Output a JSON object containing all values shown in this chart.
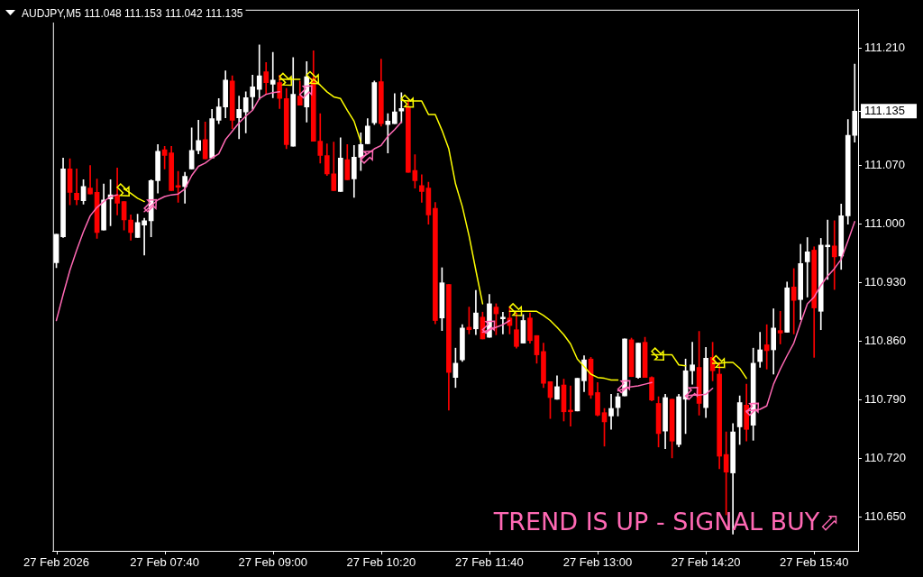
{
  "chart_data": {
    "type": "candlestick",
    "title": "AUDJPY,M5 111.048 111.153 111.042 111.135",
    "categories": [
      "27 Feb 2026",
      null,
      null,
      null,
      null,
      null,
      null,
      null,
      null,
      null,
      null,
      null,
      null,
      null,
      null,
      null,
      "27 Feb 07:40",
      null,
      null,
      null,
      null,
      null,
      null,
      null,
      null,
      null,
      null,
      null,
      null,
      null,
      null,
      null,
      "27 Feb 09:00",
      null,
      null,
      null,
      null,
      null,
      null,
      null,
      null,
      null,
      null,
      null,
      null,
      null,
      null,
      null,
      "27 Feb 10:20",
      null,
      null,
      null,
      null,
      null,
      null,
      null,
      null,
      null,
      null,
      null,
      null,
      null,
      null,
      null,
      "27 Feb 11:40",
      null,
      null,
      null,
      null,
      null,
      null,
      null,
      null,
      null,
      null,
      null,
      null,
      null,
      null,
      null,
      "27 Feb 13:00",
      null,
      null,
      null,
      null,
      null,
      null,
      null,
      null,
      null,
      null,
      null,
      null,
      null,
      null,
      null,
      "27 Feb 14:20",
      null,
      null,
      null,
      null,
      null,
      null,
      null,
      null,
      null,
      null,
      null,
      null,
      null,
      null,
      null,
      "27 Feb 15:40",
      null,
      null,
      null,
      null,
      null,
      null
    ],
    "ohlc": [
      [
        110.954,
        110.988,
        110.948,
        110.988
      ],
      [
        110.985,
        111.079,
        110.984,
        111.066
      ],
      [
        111.066,
        111.078,
        111.023,
        111.038
      ],
      [
        111.037,
        111.066,
        111.023,
        111.029
      ],
      [
        111.028,
        111.053,
        111.024,
        111.045
      ],
      [
        111.043,
        111.07,
        111.036,
        111.036
      ],
      [
        111.038,
        111.054,
        110.983,
        110.99
      ],
      [
        110.993,
        111.048,
        110.993,
        111.029
      ],
      [
        111.03,
        111.053,
        110.998,
        111.035
      ],
      [
        111.035,
        111.067,
        111.011,
        111.025
      ],
      [
        111.027,
        111.027,
        110.993,
        111.005
      ],
      [
        111.005,
        111.011,
        110.981,
        110.99
      ],
      [
        110.984,
        111.012,
        110.984,
        111.002
      ],
      [
        110.999,
        111.007,
        110.963,
        111.004
      ],
      [
        111.004,
        111.053,
        110.985,
        111.052
      ],
      [
        111.052,
        111.095,
        111.037,
        111.087
      ],
      [
        111.089,
        111.093,
        111.066,
        111.082
      ],
      [
        111.085,
        111.093,
        111.04,
        111.04
      ],
      [
        111.046,
        111.063,
        111.026,
        111.044
      ],
      [
        111.045,
        111.062,
        111.025,
        111.057
      ],
      [
        111.066,
        111.115,
        111.066,
        111.088
      ],
      [
        111.088,
        111.124,
        111.084,
        111.1
      ],
      [
        111.101,
        111.122,
        111.078,
        111.078
      ],
      [
        111.079,
        111.137,
        111.079,
        111.126
      ],
      [
        111.124,
        111.15,
        111.12,
        111.14
      ],
      [
        111.14,
        111.183,
        111.127,
        111.172
      ],
      [
        111.171,
        111.177,
        111.114,
        111.124
      ],
      [
        111.127,
        111.153,
        111.102,
        111.137
      ],
      [
        111.134,
        111.158,
        111.109,
        111.151
      ],
      [
        111.152,
        111.178,
        111.137,
        111.164
      ],
      [
        111.161,
        111.214,
        111.149,
        111.177
      ],
      [
        111.182,
        111.193,
        111.155,
        111.169
      ],
      [
        111.167,
        111.205,
        111.151,
        111.172
      ],
      [
        111.169,
        111.178,
        111.138,
        111.15
      ],
      [
        111.15,
        111.162,
        111.09,
        111.095
      ],
      [
        111.093,
        111.199,
        111.093,
        111.155
      ],
      [
        111.153,
        111.171,
        111.142,
        111.142
      ],
      [
        111.14,
        111.194,
        111.122,
        111.176
      ],
      [
        111.174,
        111.207,
        111.099,
        111.099
      ],
      [
        111.099,
        111.132,
        111.073,
        111.082
      ],
      [
        111.082,
        111.096,
        111.058,
        111.06
      ],
      [
        111.06,
        111.098,
        111.04,
        111.04
      ],
      [
        111.039,
        111.103,
        111.039,
        111.079
      ],
      [
        111.077,
        111.095,
        111.053,
        111.053
      ],
      [
        111.054,
        111.094,
        111.032,
        111.08
      ],
      [
        111.08,
        111.109,
        111.064,
        111.095
      ],
      [
        111.096,
        111.126,
        111.096,
        111.117
      ],
      [
        111.121,
        111.171,
        111.119,
        111.169
      ],
      [
        111.17,
        111.197,
        111.117,
        111.12
      ],
      [
        111.119,
        111.132,
        111.085,
        111.123
      ],
      [
        111.12,
        111.156,
        111.12,
        111.134
      ],
      [
        111.135,
        111.157,
        111.121,
        111.138
      ],
      [
        111.14,
        111.148,
        111.062,
        111.062
      ],
      [
        111.064,
        111.083,
        111.043,
        111.052
      ],
      [
        111.046,
        111.059,
        111.026,
        111.039
      ],
      [
        111.043,
        111.05,
        111.0,
        111.011
      ],
      [
        111.019,
        111.026,
        110.881,
        110.885
      ],
      [
        110.888,
        110.948,
        110.873,
        110.93
      ],
      [
        110.928,
        110.928,
        110.778,
        110.823
      ],
      [
        110.817,
        110.852,
        110.805,
        110.834
      ],
      [
        110.838,
        110.88,
        110.836,
        110.876
      ],
      [
        110.877,
        110.901,
        110.869,
        110.874
      ],
      [
        110.875,
        110.921,
        110.868,
        110.894
      ],
      [
        110.889,
        110.895,
        110.863,
        110.863
      ],
      [
        110.865,
        110.916,
        110.865,
        110.905
      ],
      [
        110.901,
        110.905,
        110.868,
        110.893
      ],
      [
        110.887,
        110.895,
        110.869,
        110.889
      ],
      [
        110.888,
        110.901,
        110.869,
        110.879
      ],
      [
        110.874,
        110.894,
        110.852,
        110.854
      ],
      [
        110.858,
        110.892,
        110.858,
        110.885
      ],
      [
        110.888,
        110.894,
        110.858,
        110.861
      ],
      [
        110.867,
        110.867,
        110.834,
        110.844
      ],
      [
        110.848,
        110.858,
        110.805,
        110.81
      ],
      [
        110.812,
        110.812,
        110.768,
        110.793
      ],
      [
        110.791,
        110.819,
        110.791,
        110.806
      ],
      [
        110.808,
        110.815,
        110.765,
        110.776
      ],
      [
        110.778,
        110.807,
        110.759,
        110.776
      ],
      [
        110.777,
        110.816,
        110.777,
        110.816
      ],
      [
        110.813,
        110.843,
        110.8,
        110.838
      ],
      [
        110.839,
        110.841,
        110.792,
        110.796
      ],
      [
        110.799,
        110.811,
        110.771,
        110.772
      ],
      [
        110.775,
        110.78,
        110.735,
        110.764
      ],
      [
        110.771,
        110.797,
        110.755,
        110.78
      ],
      [
        110.781,
        110.798,
        110.771,
        110.794
      ],
      [
        110.795,
        110.863,
        110.795,
        110.863
      ],
      [
        110.862,
        110.864,
        110.818,
        110.818
      ],
      [
        110.817,
        110.858,
        110.816,
        110.858
      ],
      [
        110.859,
        110.865,
        110.817,
        110.817
      ],
      [
        110.817,
        110.818,
        110.789,
        110.79
      ],
      [
        110.786,
        110.794,
        110.734,
        110.75
      ],
      [
        110.753,
        110.797,
        110.732,
        110.793
      ],
      [
        110.791,
        110.791,
        110.721,
        110.741
      ],
      [
        110.737,
        110.797,
        110.734,
        110.794
      ],
      [
        110.791,
        110.839,
        110.75,
        110.825
      ],
      [
        110.825,
        110.859,
        110.809,
        110.832
      ],
      [
        110.829,
        110.872,
        110.772,
        110.786
      ],
      [
        110.781,
        110.853,
        110.769,
        110.84
      ],
      [
        110.841,
        110.859,
        110.813,
        110.825
      ],
      [
        110.821,
        110.835,
        110.708,
        110.723
      ],
      [
        110.725,
        110.752,
        110.653,
        110.704
      ],
      [
        110.703,
        110.762,
        110.63,
        110.752
      ],
      [
        110.758,
        110.795,
        110.737,
        110.787
      ],
      [
        110.784,
        110.809,
        110.741,
        110.755
      ],
      [
        110.76,
        110.852,
        110.742,
        110.834
      ],
      [
        110.836,
        110.871,
        110.829,
        110.85
      ],
      [
        110.856,
        110.88,
        110.827,
        110.849
      ],
      [
        110.85,
        110.899,
        110.821,
        110.876
      ],
      [
        110.873,
        110.896,
        110.857,
        110.87
      ],
      [
        110.871,
        110.931,
        110.871,
        110.924
      ],
      [
        110.925,
        110.947,
        110.869,
        110.909
      ],
      [
        110.91,
        110.976,
        110.886,
        110.953
      ],
      [
        110.955,
        110.984,
        110.913,
        110.967
      ],
      [
        110.969,
        110.973,
        110.841,
        110.9
      ],
      [
        110.896,
        110.983,
        110.874,
        110.975
      ],
      [
        110.973,
        111.005,
        110.934,
        110.975
      ],
      [
        110.974,
        111.004,
        110.922,
        110.961
      ],
      [
        110.962,
        111.024,
        110.946,
        111.01
      ],
      [
        111.01,
        111.125,
        111.0,
        111.106
      ],
      [
        111.106,
        111.191,
        111.098,
        111.135
      ]
    ],
    "colors": [
      "#ffffff",
      "#ffffff",
      "#ff0000",
      "#ff0000",
      "#ffffff",
      "#ff0000",
      "#ff0000",
      "#ffffff",
      "#ffffff",
      "#ff0000",
      "#ff0000",
      "#ff0000",
      "#ffffff",
      "#ffffff",
      "#ffffff",
      "#ffffff",
      "#ff0000",
      "#ff0000",
      "#ff0000",
      "#ffffff",
      "#ffffff",
      "#ffffff",
      "#ff0000",
      "#ffffff",
      "#ffffff",
      "#ffffff",
      "#ff0000",
      "#ffffff",
      "#ffffff",
      "#ffffff",
      "#ffffff",
      "#ff0000",
      "#ffffff",
      "#ff0000",
      "#ff0000",
      "#ffffff",
      "#ff0000",
      "#ffffff",
      "#ff0000",
      "#ff0000",
      "#ff0000",
      "#ff0000",
      "#ffffff",
      "#ff0000",
      "#ffffff",
      "#ffffff",
      "#ffffff",
      "#ffffff",
      "#ff0000",
      "#ffffff",
      "#ffffff",
      "#ffffff",
      "#ff0000",
      "#ff0000",
      "#ff0000",
      "#ff0000",
      "#ff0000",
      "#ffffff",
      "#ff0000",
      "#ffffff",
      "#ffffff",
      "#ff0000",
      "#ffffff",
      "#ff0000",
      "#ffffff",
      "#ff0000",
      "#ffffff",
      "#ff0000",
      "#ff0000",
      "#ffffff",
      "#ff0000",
      "#ff0000",
      "#ff0000",
      "#ff0000",
      "#ffffff",
      "#ff0000",
      "#ff0000",
      "#ffffff",
      "#ffffff",
      "#ff0000",
      "#ff0000",
      "#ff0000",
      "#ffffff",
      "#ffffff",
      "#ffffff",
      "#ff0000",
      "#ffffff",
      "#ff0000",
      "#ff0000",
      "#ff0000",
      "#ffffff",
      "#ff0000",
      "#ffffff",
      "#ffffff",
      "#ffffff",
      "#ff0000",
      "#ffffff",
      "#ff0000",
      "#ff0000",
      "#ff0000",
      "#ffffff",
      "#ffffff",
      "#ff0000",
      "#ffffff",
      "#ffffff",
      "#ff0000",
      "#ffffff",
      "#ff0000",
      "#ffffff",
      "#ff0000",
      "#ffffff",
      "#ffffff",
      "#ff0000",
      "#ffffff",
      "#ffffff",
      "#ff0000",
      "#ffffff",
      "#ffffff",
      "#ffffff"
    ],
    "series": [
      {
        "type": "line",
        "color": "#ffff00",
        "values": [
          null,
          null,
          null,
          null,
          null,
          null,
          null,
          null,
          null,
          null,
          111.042,
          111.037,
          111.031,
          111.027,
          null,
          null,
          null,
          null,
          null,
          null,
          null,
          null,
          null,
          null,
          null,
          null,
          null,
          null,
          null,
          null,
          null,
          null,
          null,
          111.173,
          111.173,
          111.173,
          111.173,
          null,
          111.173,
          111.166,
          111.158,
          111.152,
          111.15,
          111.136,
          111.123,
          111.098,
          null,
          null,
          null,
          null,
          null,
          111.148,
          111.147,
          111.147,
          111.147,
          111.131,
          111.131,
          111.112,
          111.09,
          111.048,
          111.021,
          110.986,
          110.945,
          110.905,
          null,
          null,
          null,
          110.896,
          110.896,
          110.896,
          110.896,
          110.896,
          110.891,
          110.885,
          110.877,
          110.868,
          110.857,
          110.839,
          110.83,
          110.821,
          110.817,
          110.816,
          110.814,
          110.814,
          null,
          null,
          null,
          null,
          110.844,
          110.844,
          110.844,
          110.844,
          110.832,
          110.831,
          null,
          null,
          null,
          110.834,
          110.834,
          110.835,
          110.835,
          110.828,
          110.816,
          null,
          null,
          null,
          null,
          null,
          null,
          null,
          null,
          null,
          null,
          null,
          null,
          null,
          null,
          null,
          null
        ]
      },
      {
        "type": "line",
        "color": "#ff69b4",
        "values": [
          110.885,
          110.916,
          110.945,
          110.969,
          110.991,
          111.01,
          111.02,
          111.027,
          111.033,
          111.035,
          null,
          null,
          null,
          111.015,
          111.022,
          111.029,
          111.033,
          111.035,
          111.036,
          111.042,
          111.058,
          111.069,
          111.073,
          111.079,
          111.084,
          111.101,
          111.111,
          111.121,
          111.129,
          111.136,
          111.15,
          111.155,
          111.157,
          111.158,
          null,
          null,
          null,
          null,
          null,
          null,
          null,
          null,
          null,
          null,
          null,
          111.079,
          111.084,
          111.09,
          111.094,
          111.105,
          111.113,
          111.122,
          null,
          null,
          null,
          null,
          null,
          null,
          null,
          null,
          null,
          null,
          null,
          110.871,
          110.874,
          110.877,
          110.88,
          110.885,
          null,
          null,
          null,
          null,
          null,
          null,
          null,
          null,
          null,
          null,
          null,
          null,
          null,
          null,
          null,
          110.801,
          110.804,
          110.806,
          110.807,
          110.809,
          110.811,
          null,
          null,
          null,
          null,
          110.795,
          110.796,
          110.796,
          110.797,
          110.804,
          null,
          null,
          null,
          null,
          110.777,
          110.778,
          110.779,
          110.783,
          110.809,
          110.827,
          110.843,
          110.858,
          110.882,
          110.905,
          110.913,
          110.927,
          110.938,
          110.947,
          110.958,
          110.98,
          111.003
        ]
      },
      {
        "type": "scatter",
        "color": "#ffff00",
        "values": [
          null,
          null,
          null,
          null,
          null,
          null,
          null,
          null,
          null,
          null,
          111.04,
          null,
          null,
          null,
          null,
          null,
          null,
          null,
          null,
          null,
          null,
          null,
          null,
          null,
          null,
          null,
          null,
          null,
          null,
          null,
          null,
          null,
          null,
          null,
          111.172,
          null,
          null,
          null,
          111.174,
          null,
          null,
          null,
          null,
          null,
          null,
          null,
          null,
          null,
          null,
          null,
          null,
          null,
          111.146,
          null,
          null,
          null,
          null,
          null,
          null,
          null,
          null,
          null,
          null,
          null,
          null,
          null,
          null,
          null,
          110.897,
          null,
          null,
          null,
          null,
          null,
          null,
          null,
          null,
          null,
          null,
          null,
          null,
          null,
          null,
          null,
          null,
          null,
          null,
          null,
          null,
          110.844,
          null,
          null,
          null,
          null,
          null,
          null,
          null,
          null,
          110.835,
          null,
          null,
          null,
          null,
          null,
          null,
          null,
          null,
          null,
          null,
          null,
          null,
          null,
          null,
          null,
          null,
          null,
          null,
          null,
          null
        ]
      },
      {
        "type": "scatter",
        "color": "#ff69b4",
        "values": [
          null,
          null,
          null,
          null,
          null,
          null,
          null,
          null,
          null,
          null,
          null,
          null,
          null,
          null,
          111.023,
          null,
          null,
          null,
          null,
          null,
          null,
          null,
          null,
          null,
          null,
          null,
          null,
          null,
          null,
          null,
          null,
          null,
          null,
          null,
          null,
          null,
          null,
          111.159,
          null,
          null,
          null,
          null,
          null,
          null,
          null,
          null,
          111.081,
          null,
          null,
          null,
          null,
          null,
          null,
          null,
          null,
          null,
          null,
          null,
          null,
          null,
          null,
          null,
          null,
          null,
          110.878,
          null,
          null,
          null,
          null,
          null,
          null,
          null,
          null,
          null,
          null,
          null,
          null,
          null,
          null,
          null,
          null,
          null,
          null,
          null,
          110.807,
          null,
          null,
          null,
          null,
          null,
          null,
          null,
          null,
          null,
          110.799,
          null,
          null,
          null,
          null,
          null,
          null,
          null,
          null,
          110.78,
          null,
          null,
          null,
          null,
          null,
          null,
          null,
          null,
          null,
          null,
          null,
          null,
          null,
          null,
          null
        ]
      }
    ],
    "ylim": [
      110.61,
      111.256
    ],
    "yticks": [
      {
        "value": 110.65,
        "label": "110.650"
      },
      {
        "value": 110.72,
        "label": "110.720"
      },
      {
        "value": 110.79,
        "label": "110.790"
      },
      {
        "value": 110.86,
        "label": "110.860"
      },
      {
        "value": 110.93,
        "label": "110.930"
      },
      {
        "value": 111,
        "label": "111.000"
      },
      {
        "value": 111.07,
        "label": "111.070"
      },
      111.135,
      {
        "value": 111.21,
        "label": "111.210"
      }
    ],
    "annotations": [
      "TREND IS UP - SIGNAL BUY⬀"
    ]
  }
}
